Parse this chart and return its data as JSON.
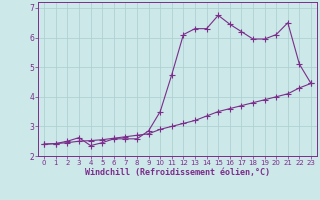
{
  "line1_x": [
    0,
    1,
    2,
    3,
    4,
    5,
    6,
    7,
    8,
    9,
    10,
    11,
    12,
    13,
    14,
    15,
    16,
    17,
    18,
    19,
    20,
    21,
    22,
    23
  ],
  "line1_y": [
    2.4,
    2.42,
    2.45,
    2.5,
    2.52,
    2.55,
    2.6,
    2.65,
    2.7,
    2.75,
    2.9,
    3.0,
    3.1,
    3.2,
    3.35,
    3.5,
    3.6,
    3.7,
    3.8,
    3.9,
    4.0,
    4.1,
    4.3,
    4.45
  ],
  "line2_x": [
    0,
    1,
    2,
    3,
    4,
    5,
    6,
    7,
    8,
    9,
    10,
    11,
    12,
    13,
    14,
    15,
    16,
    17,
    18,
    19,
    20,
    21,
    22,
    23
  ],
  "line2_y": [
    2.4,
    2.42,
    2.5,
    2.62,
    2.35,
    2.45,
    2.58,
    2.58,
    2.58,
    2.85,
    3.5,
    4.75,
    6.1,
    6.3,
    6.3,
    6.75,
    6.45,
    6.2,
    5.95,
    5.95,
    6.1,
    6.5,
    5.1,
    4.45
  ],
  "color": "#7b2d8b",
  "bg_color": "#cce8e8",
  "grid_color": "#aacece",
  "xlabel": "Windchill (Refroidissement éolien,°C)",
  "ylim": [
    2.0,
    7.2
  ],
  "xlim": [
    -0.5,
    23.5
  ],
  "yticks": [
    2,
    3,
    4,
    5,
    6,
    7
  ],
  "xticks": [
    0,
    1,
    2,
    3,
    4,
    5,
    6,
    7,
    8,
    9,
    10,
    11,
    12,
    13,
    14,
    15,
    16,
    17,
    18,
    19,
    20,
    21,
    22,
    23
  ],
  "marker": "+",
  "marker_size": 4,
  "line_width": 0.8
}
